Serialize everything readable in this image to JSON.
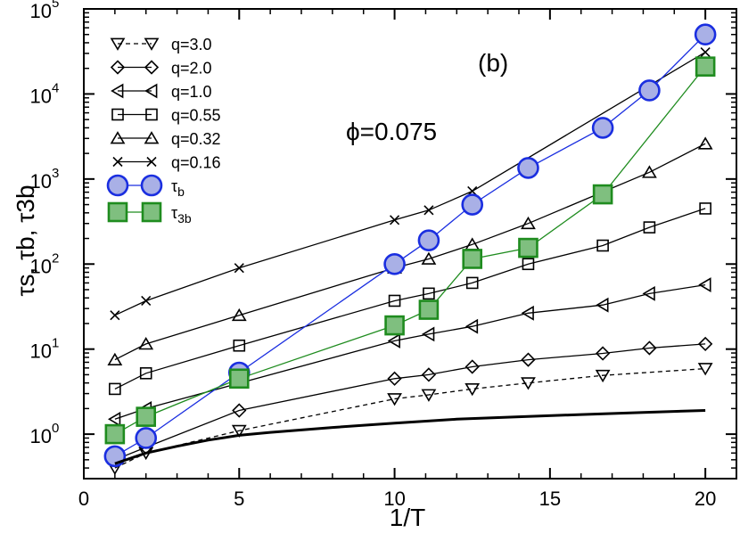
{
  "chart_data": {
    "type": "line",
    "panel_label": "(b)",
    "annotation": "ϕ=0.075",
    "xlabel": "1/T",
    "ylabel": "τs, τb, τ3b",
    "yscale": "log",
    "xlim": [
      0,
      21
    ],
    "ylim": [
      0.3,
      100000
    ],
    "x_ticks": [
      0,
      5,
      10,
      15,
      20
    ],
    "x_tick_labels": [
      "0",
      "5",
      "10",
      "15",
      "20"
    ],
    "y_ticks": [
      1,
      10,
      100,
      1000,
      10000,
      100000
    ],
    "y_tick_labels": [
      "10",
      "10",
      "10",
      "10",
      "10",
      "10"
    ],
    "y_tick_exponents": [
      "0",
      "1",
      "2",
      "3",
      "4",
      "5"
    ],
    "legend_position": "top-left",
    "series": [
      {
        "name": "q=3.0",
        "label": "q=3.0",
        "marker": "triangle-down",
        "dashed": true,
        "color": "#000000",
        "x": [
          1,
          2,
          5,
          10,
          11.1,
          12.5,
          14.3,
          16.7,
          20
        ],
        "y": [
          0.4,
          0.6,
          1.1,
          2.6,
          2.9,
          3.4,
          4.0,
          4.9,
          5.9
        ]
      },
      {
        "name": "q=2.0",
        "label": "q=2.0",
        "marker": "diamond",
        "dashed": false,
        "color": "#000000",
        "x": [
          1,
          2,
          5,
          10,
          11.1,
          12.5,
          14.3,
          16.7,
          18.2,
          20
        ],
        "y": [
          0.5,
          0.7,
          1.9,
          4.5,
          5.0,
          6.2,
          7.5,
          8.9,
          10.3,
          11.5
        ]
      },
      {
        "name": "q=1.0",
        "label": "q=1.0",
        "marker": "triangle-left",
        "dashed": false,
        "color": "#000000",
        "x": [
          1,
          2,
          10,
          11.1,
          12.5,
          14.3,
          16.7,
          18.2,
          20
        ],
        "y": [
          1.5,
          2.0,
          12.5,
          15.0,
          18.5,
          26.5,
          33,
          45,
          57
        ]
      },
      {
        "name": "q=0.55",
        "label": "q=0.55",
        "marker": "square",
        "dashed": false,
        "color": "#000000",
        "x": [
          1,
          2,
          5,
          10,
          11.1,
          12.5,
          14.3,
          16.7,
          18.2,
          20
        ],
        "y": [
          3.4,
          5.2,
          11,
          37,
          45,
          60,
          100,
          165,
          270,
          450
        ]
      },
      {
        "name": "q=0.32",
        "label": "q=0.32",
        "marker": "triangle-up",
        "dashed": false,
        "color": "#000000",
        "x": [
          1,
          2,
          5,
          10,
          11.1,
          12.5,
          14.3,
          18.2,
          20
        ],
        "y": [
          7.5,
          11.5,
          25,
          90,
          115,
          170,
          300,
          1200,
          2600
        ]
      },
      {
        "name": "q=0.16",
        "label": "q=0.16",
        "marker": "x",
        "dashed": false,
        "color": "#000000",
        "x": [
          1,
          2,
          5,
          10,
          11.1,
          12.5,
          20
        ],
        "y": [
          25,
          37,
          90,
          330,
          430,
          720,
          31000
        ]
      },
      {
        "name": "tau_b",
        "label": "τ",
        "label_sub": "b",
        "marker": "circle-big",
        "dashed": false,
        "color": "#1a2ee0",
        "fill": "#a9b0e6",
        "x": [
          1,
          2,
          5,
          10,
          11.1,
          12.5,
          14.3,
          16.7,
          18.2,
          20
        ],
        "y": [
          0.55,
          0.9,
          5.3,
          100,
          190,
          500,
          1350,
          4000,
          11000,
          50000
        ]
      },
      {
        "name": "tau_3b",
        "label": "τ",
        "label_sub": "3b",
        "marker": "square-big",
        "dashed": false,
        "color": "#1f8c1f",
        "fill": "#7fbf7f",
        "x": [
          1,
          2,
          5,
          10,
          11.1,
          12.5,
          14.3,
          16.7,
          20
        ],
        "y": [
          1.0,
          1.6,
          4.5,
          19,
          29,
          115,
          155,
          660,
          21000
        ]
      },
      {
        "name": "reference",
        "label": "",
        "marker": "none",
        "dashed": false,
        "color": "#000000",
        "thick": true,
        "x": [
          1,
          1.5,
          2,
          3,
          4,
          5,
          6,
          8,
          10,
          12,
          14,
          16,
          18,
          20
        ],
        "y": [
          0.45,
          0.52,
          0.6,
          0.72,
          0.85,
          0.97,
          1.05,
          1.2,
          1.35,
          1.5,
          1.6,
          1.7,
          1.8,
          1.9
        ]
      }
    ]
  }
}
